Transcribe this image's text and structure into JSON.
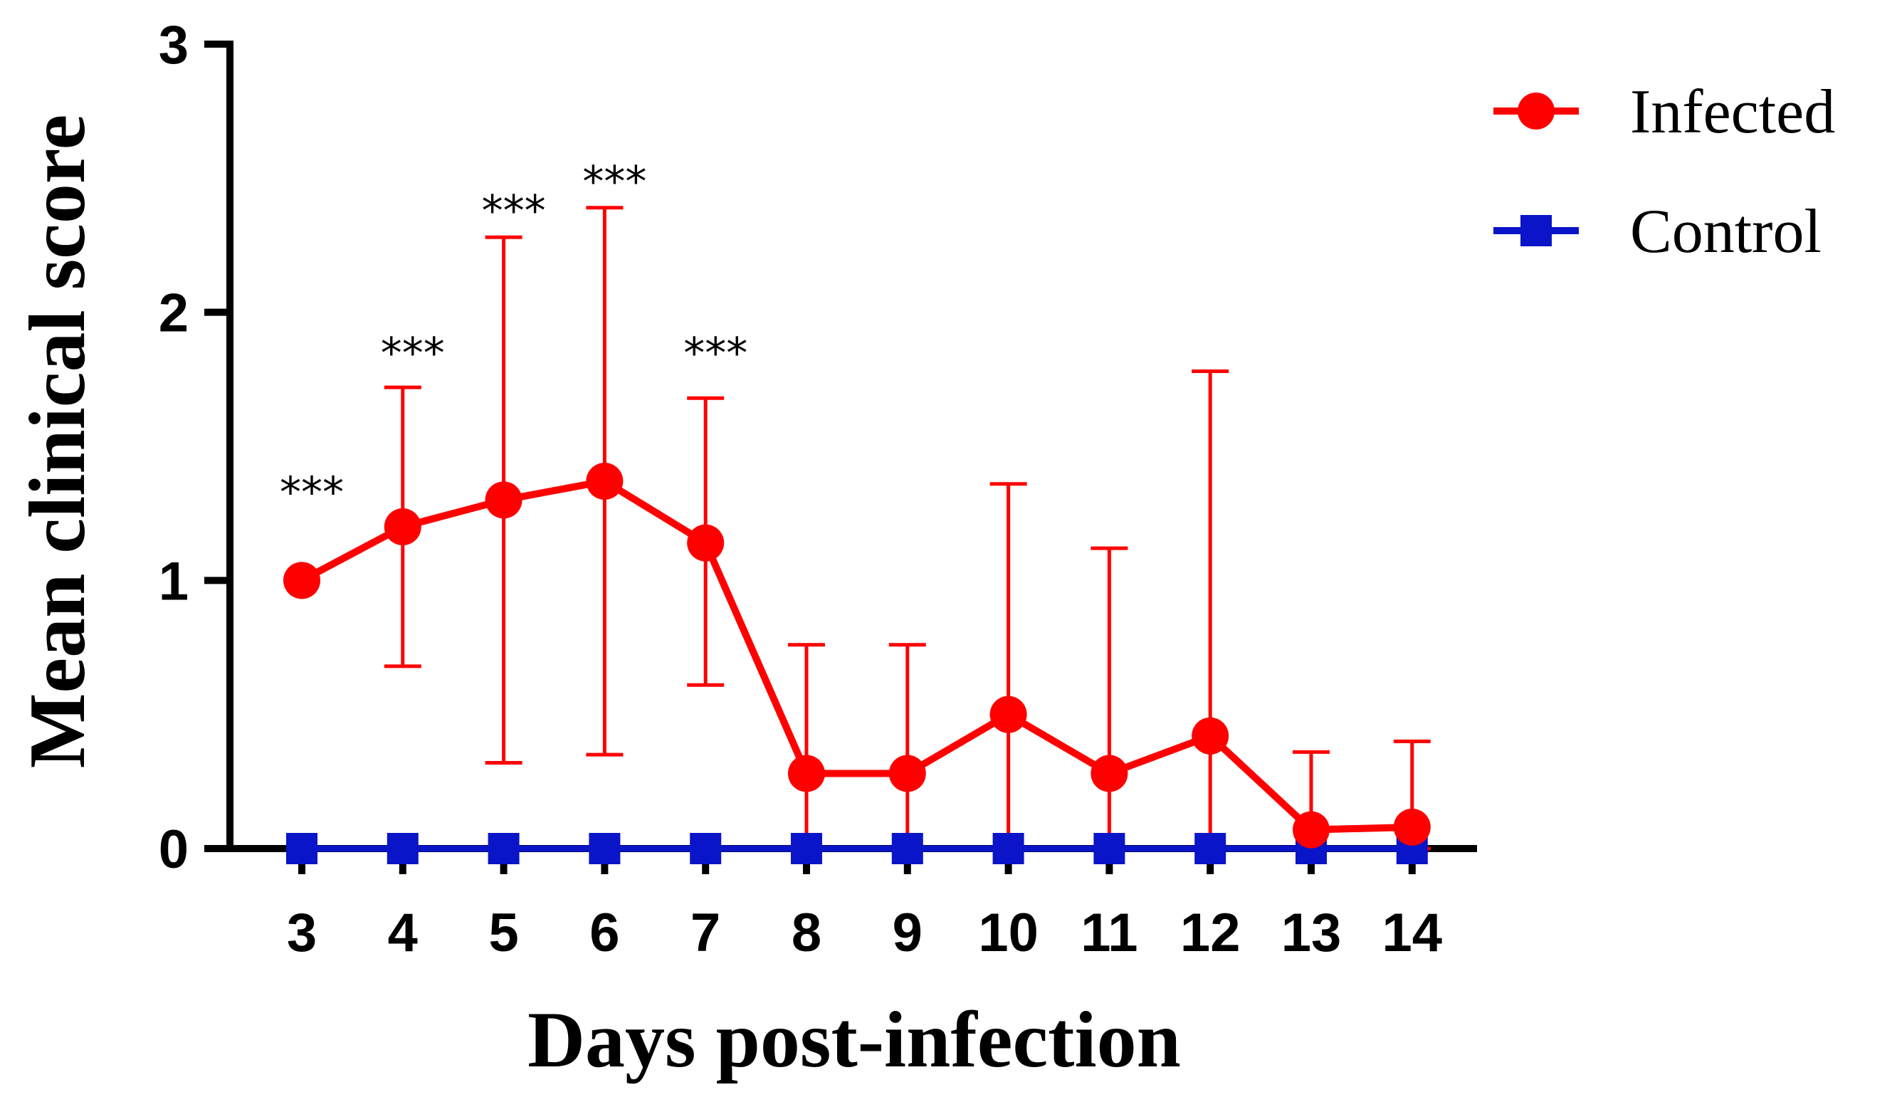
{
  "chart_data": {
    "type": "line",
    "title": "",
    "xlabel": "Days post-infection",
    "ylabel": "Mean clinical score",
    "x": [
      3,
      4,
      5,
      6,
      7,
      8,
      9,
      10,
      11,
      12,
      13,
      14
    ],
    "xticks": [
      "3",
      "4",
      "5",
      "6",
      "7",
      "8",
      "9",
      "10",
      "11",
      "12",
      "13",
      "14"
    ],
    "ylim": [
      0,
      3
    ],
    "yticks": [
      "0",
      "1",
      "2",
      "3"
    ],
    "legend_position": "top-right",
    "series": [
      {
        "name": "Infected",
        "color": "#ff0000",
        "marker": "circle",
        "values": [
          1.0,
          1.2,
          1.3,
          1.37,
          1.14,
          0.28,
          0.28,
          0.5,
          0.28,
          0.42,
          0.07,
          0.08
        ],
        "error_upper": [
          1.0,
          1.72,
          2.28,
          2.39,
          1.68,
          0.76,
          0.76,
          1.36,
          1.12,
          1.78,
          0.36,
          0.4
        ],
        "error_lower": [
          1.0,
          0.68,
          0.32,
          0.35,
          0.61,
          0.0,
          0.0,
          0.0,
          0.0,
          0.0,
          0.0,
          0.0
        ]
      },
      {
        "name": "Control",
        "color": "#0a14c8",
        "marker": "square",
        "values": [
          0,
          0,
          0,
          0,
          0,
          0,
          0,
          0,
          0,
          0,
          0,
          0
        ]
      }
    ],
    "annotations": [
      {
        "x": 3,
        "y": 1.38,
        "text": "***"
      },
      {
        "x": 4,
        "y": 1.9,
        "text": "***"
      },
      {
        "x": 5,
        "y": 2.43,
        "text": "***"
      },
      {
        "x": 6,
        "y": 2.54,
        "text": "***"
      },
      {
        "x": 7,
        "y": 1.9,
        "text": "***"
      }
    ]
  }
}
